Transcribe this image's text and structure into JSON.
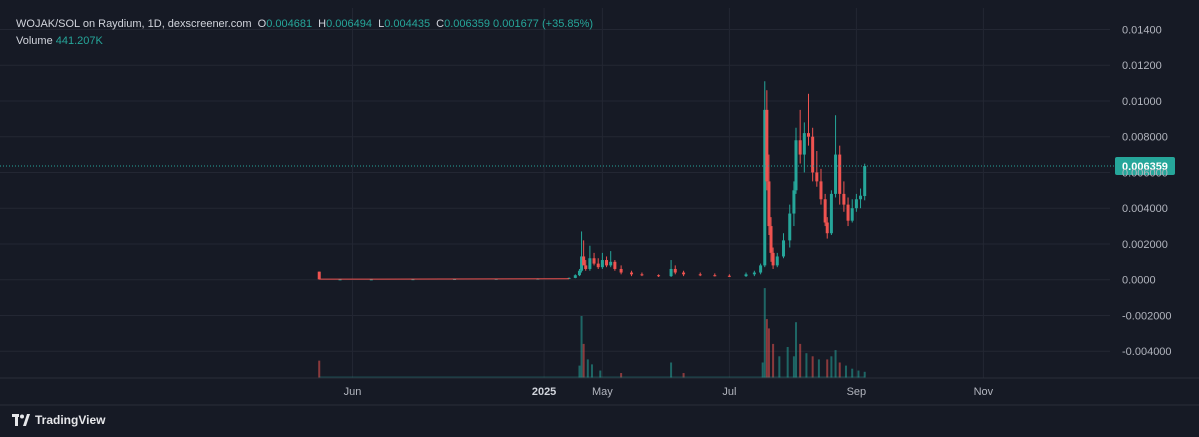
{
  "legend": {
    "pair": "WOJAK/SOL on Raydium, 1D, dexscreener.com",
    "o_label": "O",
    "o": "0.004681",
    "h_label": "H",
    "h": "0.006494",
    "l_label": "L",
    "l": "0.004435",
    "c_label": "C",
    "c": "0.006359",
    "change": "0.001677 (+35.85%)",
    "volume_label": "Volume",
    "volume": "441.207K"
  },
  "branding": {
    "name": "TradingView"
  },
  "colors": {
    "background": "#161a25",
    "up": "#26a69a",
    "down": "#ef5350",
    "grid": "#232733",
    "text": "#b2b5be"
  },
  "chart_data": {
    "type": "candlestick",
    "title": "WOJAK/SOL on Raydium, 1D, dexscreener.com",
    "y_ticks": [
      "0.01400",
      "0.01200",
      "0.01000",
      "0.008000",
      "0.006000",
      "0.004000",
      "0.002000",
      "0.0000",
      "-0.002000",
      "-0.004000"
    ],
    "y_tick_values": [
      0.014,
      0.012,
      0.01,
      0.008,
      0.006,
      0.004,
      0.002,
      0.0,
      -0.002,
      -0.004
    ],
    "ylim": [
      -0.0055,
      0.0152
    ],
    "x_ticks": [
      "Jun",
      "2025",
      "May",
      "Jul",
      "Sep",
      "Nov"
    ],
    "x_tick_days": [
      31,
      123,
      151,
      212,
      273,
      334
    ],
    "xlim_days": [
      0,
      366
    ],
    "last_price_label": "0.006359",
    "last_price": 0.006359,
    "grid": true,
    "volume_indicator": {
      "label": "Volume",
      "last": "441.207K"
    },
    "candles_key": "d,o,h,l,c",
    "candles": [
      [
        15,
        0.00045,
        0.00045,
        1e-05,
        2e-05
      ],
      [
        25,
        2e-05,
        3e-05,
        1e-05,
        2e-05
      ],
      [
        40,
        2e-05,
        3e-05,
        1e-05,
        2e-05
      ],
      [
        60,
        2e-05,
        4e-05,
        2e-05,
        3e-05
      ],
      [
        80,
        3e-05,
        5e-05,
        2e-05,
        4e-05
      ],
      [
        100,
        4e-05,
        6e-05,
        3e-05,
        5e-05
      ],
      [
        120,
        5e-05,
        8e-05,
        4e-05,
        6e-05
      ],
      [
        135,
        6e-05,
        0.00012,
        5e-05,
        0.0001
      ],
      [
        138,
        0.0001,
        0.0003,
        8e-05,
        0.00025
      ],
      [
        140,
        0.00025,
        0.0006,
        0.0002,
        0.0005
      ],
      [
        141,
        0.0005,
        0.0027,
        0.0004,
        0.0013
      ],
      [
        142,
        0.0013,
        0.0022,
        0.001,
        0.0008
      ],
      [
        143,
        0.0008,
        0.0011,
        0.0005,
        0.0006
      ],
      [
        145,
        0.0006,
        0.0019,
        0.0005,
        0.0012
      ],
      [
        147,
        0.0012,
        0.0015,
        0.0008,
        0.0009
      ],
      [
        149,
        0.0009,
        0.0012,
        0.0006,
        0.0007
      ],
      [
        151,
        0.0007,
        0.0015,
        0.0006,
        0.0011
      ],
      [
        153,
        0.0011,
        0.0013,
        0.0007,
        0.0008
      ],
      [
        155,
        0.0008,
        0.0016,
        0.0007,
        0.001
      ],
      [
        157,
        0.001,
        0.0011,
        0.0005,
        0.0006
      ],
      [
        160,
        0.0006,
        0.0008,
        0.0003,
        0.0004
      ],
      [
        165,
        0.0004,
        0.0005,
        0.0002,
        0.0003
      ],
      [
        170,
        0.0003,
        0.0004,
        0.0002,
        0.00025
      ],
      [
        178,
        0.00025,
        0.0003,
        0.00015,
        0.0002
      ],
      [
        184,
        0.0002,
        0.0011,
        0.00015,
        0.0006
      ],
      [
        186,
        0.0006,
        0.0008,
        0.0003,
        0.0004
      ],
      [
        190,
        0.0004,
        0.0005,
        0.0002,
        0.0003
      ],
      [
        198,
        0.0003,
        0.0004,
        0.0002,
        0.00025
      ],
      [
        205,
        0.00025,
        0.00035,
        0.00018,
        0.00022
      ],
      [
        212,
        0.00022,
        0.0003,
        0.00015,
        0.0002
      ],
      [
        220,
        0.0002,
        0.0004,
        0.00015,
        0.0003
      ],
      [
        224,
        0.0003,
        0.0005,
        0.0002,
        0.0004
      ],
      [
        227,
        0.0004,
        0.0009,
        0.0003,
        0.0008
      ],
      [
        229,
        0.0008,
        0.0111,
        0.0007,
        0.0095
      ],
      [
        230,
        0.0095,
        0.0106,
        0.005,
        0.0055
      ],
      [
        231,
        0.0055,
        0.007,
        0.0025,
        0.003
      ],
      [
        232,
        0.003,
        0.0035,
        0.001,
        0.0015
      ],
      [
        233,
        0.0015,
        0.0018,
        0.0006,
        0.0008
      ],
      [
        235,
        0.0008,
        0.0015,
        0.0007,
        0.0013
      ],
      [
        238,
        0.0013,
        0.0026,
        0.0012,
        0.0022
      ],
      [
        241,
        0.0022,
        0.0042,
        0.0018,
        0.0037
      ],
      [
        243,
        0.0037,
        0.0055,
        0.003,
        0.005
      ],
      [
        244,
        0.005,
        0.0085,
        0.0048,
        0.0078
      ],
      [
        246,
        0.0078,
        0.0095,
        0.0065,
        0.007
      ],
      [
        248,
        0.007,
        0.0088,
        0.006,
        0.0082
      ],
      [
        250,
        0.0082,
        0.0104,
        0.0075,
        0.008
      ],
      [
        252,
        0.008,
        0.0085,
        0.0055,
        0.006
      ],
      [
        254,
        0.006,
        0.0072,
        0.0052,
        0.0055
      ],
      [
        256,
        0.0055,
        0.0062,
        0.0042,
        0.0045
      ],
      [
        258,
        0.0045,
        0.0048,
        0.003,
        0.0032
      ],
      [
        259,
        0.0032,
        0.0035,
        0.0023,
        0.0026
      ],
      [
        261,
        0.0026,
        0.005,
        0.0025,
        0.0048
      ],
      [
        263,
        0.0048,
        0.0092,
        0.0046,
        0.007
      ],
      [
        265,
        0.007,
        0.0075,
        0.0042,
        0.0048
      ],
      [
        267,
        0.0048,
        0.0055,
        0.0038,
        0.0042
      ],
      [
        269,
        0.0042,
        0.0046,
        0.003,
        0.0033
      ],
      [
        271,
        0.0033,
        0.0045,
        0.0032,
        0.004
      ],
      [
        273,
        0.004,
        0.0048,
        0.0038,
        0.0045
      ],
      [
        275,
        0.0045,
        0.0051,
        0.004,
        0.0047
      ],
      [
        277,
        0.00468,
        0.00649,
        0.00444,
        0.00636
      ]
    ],
    "volume_key": "d,v",
    "volume": [
      [
        15,
        0.28
      ],
      [
        140,
        0.2
      ],
      [
        141,
        1.0
      ],
      [
        142,
        0.55
      ],
      [
        144,
        0.3
      ],
      [
        146,
        0.22
      ],
      [
        150,
        0.12
      ],
      [
        160,
        0.08
      ],
      [
        184,
        0.25
      ],
      [
        190,
        0.08
      ],
      [
        228,
        0.25
      ],
      [
        229,
        1.45
      ],
      [
        230,
        0.95
      ],
      [
        231,
        0.8
      ],
      [
        233,
        0.55
      ],
      [
        236,
        0.35
      ],
      [
        240,
        0.5
      ],
      [
        243,
        0.35
      ],
      [
        244,
        0.9
      ],
      [
        246,
        0.55
      ],
      [
        249,
        0.4
      ],
      [
        252,
        0.35
      ],
      [
        255,
        0.3
      ],
      [
        259,
        0.3
      ],
      [
        261,
        0.35
      ],
      [
        263,
        0.45
      ],
      [
        265,
        0.25
      ],
      [
        268,
        0.2
      ],
      [
        271,
        0.15
      ],
      [
        274,
        0.12
      ],
      [
        277,
        0.1
      ]
    ]
  }
}
